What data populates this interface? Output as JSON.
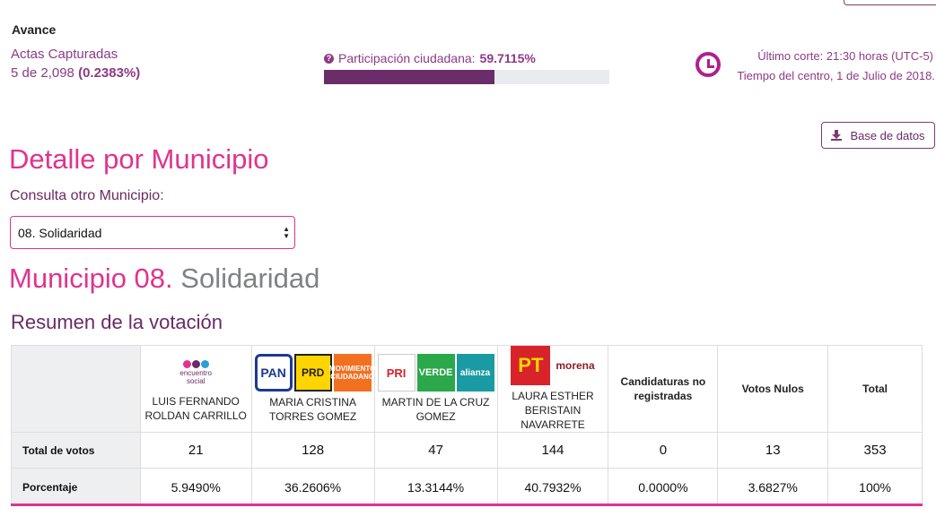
{
  "progress": {
    "section_label": "Avance",
    "actas_label": "Actas Capturadas",
    "actas_count": "5 de 2,098",
    "actas_pct": "(0.2383%)",
    "participation_label": "Participación ciudadana:",
    "participation_value": "59.7115%",
    "participation_fraction": 0.597115
  },
  "cutoff": {
    "line1": "Último corte: 21:30 horas (UTC-5)",
    "line2": "Tiempo del centro, 1 de Julio de 2018."
  },
  "toolbar": {
    "database_label": "Base de datos"
  },
  "detail": {
    "title": "Detalle por Municipio",
    "consult_label": "Consulta otro Municipio:",
    "selected_municipio": "08. Solidaridad",
    "heading_prefix": "Municipio 08.",
    "heading_name": "Solidaridad",
    "summary_title": "Resumen de la votación"
  },
  "table": {
    "candidates": [
      {
        "name": "LUIS FERNANDO ROLDAN CARRILLO",
        "logos": [
          "encuentro-social"
        ]
      },
      {
        "name": "MARIA CRISTINA TORRES GOMEZ",
        "logos": [
          "pan",
          "prd",
          "movimiento-ciudadano"
        ]
      },
      {
        "name": "MARTIN DE LA CRUZ GOMEZ",
        "logos": [
          "pri",
          "verde",
          "nueva-alianza"
        ]
      },
      {
        "name": "LAURA ESTHER BERISTAIN NAVARRETE",
        "logos": [
          "pt",
          "morena"
        ]
      }
    ],
    "extra_headers": [
      "Candidaturas no registradas",
      "Votos Nulos",
      "Total"
    ],
    "row_labels": [
      "Total de votos",
      "Porcentaje"
    ],
    "votes": [
      "21",
      "128",
      "47",
      "144",
      "0",
      "13",
      "353"
    ],
    "percentages": [
      "5.9490%",
      "36.2606%",
      "13.3144%",
      "40.7932%",
      "0.0000%",
      "3.6827%",
      "100%"
    ],
    "logo_text": {
      "pan": "PAN",
      "prd": "PRD",
      "mc": "MOVIMIENTO CIUDADANO",
      "pri": "PRI",
      "verde": "VERDE",
      "nueva_alianza": "alianza",
      "pt": "PT",
      "morena": "morena",
      "es": "encuentro social"
    }
  },
  "colors": {
    "brand_purple": "#6b2a66",
    "accent_pink": "#e0338e",
    "clock": "#b01f8e",
    "progress_fill": "#6b2d6a"
  }
}
